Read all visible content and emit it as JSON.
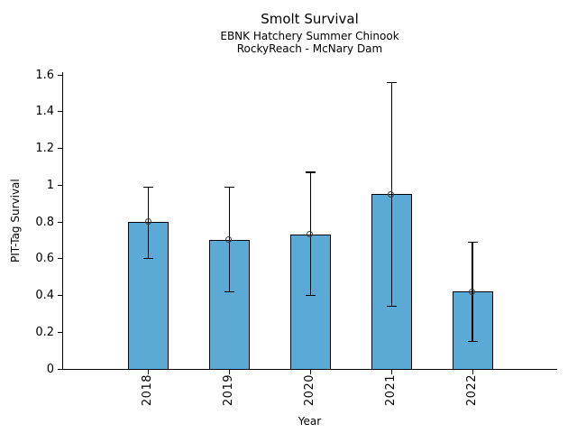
{
  "chart_data": {
    "type": "bar",
    "title": "Smolt Survival",
    "subtitle": [
      "EBNK Hatchery Summer Chinook",
      "RockyReach - McNary Dam"
    ],
    "xlabel": "Year",
    "ylabel": "PIT-Tag Survival",
    "categories": [
      "2018",
      "2019",
      "2020",
      "2021",
      "2022"
    ],
    "values": [
      0.8,
      0.7,
      0.73,
      0.95,
      0.42
    ],
    "error_low": [
      0.6,
      0.42,
      0.4,
      0.34,
      0.15
    ],
    "error_high": [
      0.99,
      0.99,
      1.07,
      1.56,
      0.69
    ],
    "yticks": {
      "labels": [
        "0",
        "0.2",
        "0.4",
        "0.6",
        "0.8",
        "1",
        "1.2",
        "1.4",
        "1.6"
      ],
      "values": [
        0,
        0.2,
        0.4,
        0.6,
        0.8,
        1.0,
        1.2,
        1.4,
        1.6
      ]
    },
    "ylim": [
      0,
      1.615
    ],
    "grid": false,
    "legend": null,
    "marker": "open-circle",
    "colors": {
      "bar_fill": "#5BAAD5",
      "bar_edge": "#000000",
      "error_bar": "#000000",
      "marker_edge": "#3b3b3b",
      "text": "#000000"
    }
  }
}
